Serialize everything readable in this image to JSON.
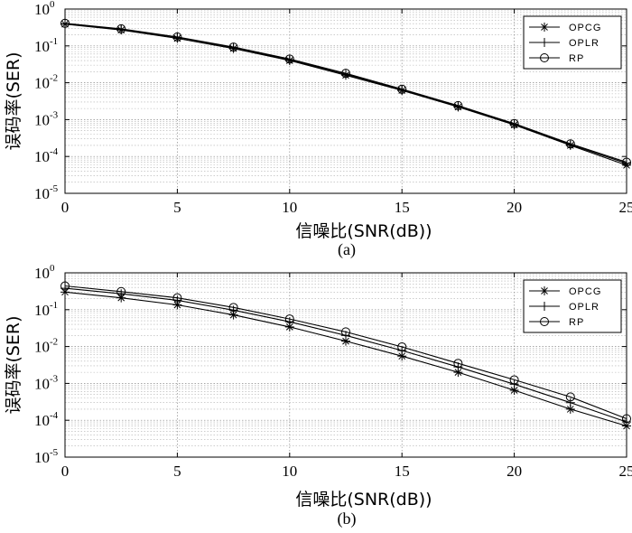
{
  "chart_data": [
    {
      "type": "line",
      "caption": "(a)",
      "xlabel": "信噪比(SNR(dB))",
      "ylabel": "误码率(SER)",
      "xlim": [
        0,
        25
      ],
      "ylim": [
        1e-05,
        1
      ],
      "yscale": "log",
      "grid": true,
      "legend_position": "top-right",
      "x_ticks": [
        "0",
        "5",
        "10",
        "15",
        "20",
        "25"
      ],
      "y_ticks": [
        {
          "base": "10",
          "exp": "0"
        },
        {
          "base": "10",
          "exp": "-1"
        },
        {
          "base": "10",
          "exp": "-2"
        },
        {
          "base": "10",
          "exp": "-3"
        },
        {
          "base": "10",
          "exp": "-4"
        },
        {
          "base": "10",
          "exp": "-5"
        }
      ],
      "x": [
        0,
        2.5,
        5,
        7.5,
        10,
        12.5,
        15,
        17.5,
        20,
        22.5,
        25
      ],
      "series": [
        {
          "name": "OPCG",
          "marker": "asterisk",
          "values": [
            0.39,
            0.27,
            0.16,
            0.085,
            0.04,
            0.016,
            0.0062,
            0.0022,
            0.00072,
            0.0002,
            5.8e-05
          ]
        },
        {
          "name": "OPLR",
          "marker": "plus",
          "values": [
            0.4,
            0.28,
            0.17,
            0.09,
            0.042,
            0.017,
            0.0064,
            0.0023,
            0.00075,
            0.00021,
            6.5e-05
          ]
        },
        {
          "name": "RP",
          "marker": "circle",
          "values": [
            0.41,
            0.29,
            0.175,
            0.093,
            0.044,
            0.018,
            0.0067,
            0.0024,
            0.00078,
            0.00022,
            7e-05
          ]
        }
      ]
    },
    {
      "type": "line",
      "caption": "(b)",
      "xlabel": "信噪比(SNR(dB))",
      "ylabel": "误码率(SER)",
      "xlim": [
        0,
        25
      ],
      "ylim": [
        1e-05,
        1
      ],
      "yscale": "log",
      "grid": true,
      "legend_position": "top-right",
      "x_ticks": [
        "0",
        "5",
        "10",
        "15",
        "20",
        "25"
      ],
      "y_ticks": [
        {
          "base": "10",
          "exp": "0"
        },
        {
          "base": "10",
          "exp": "-1"
        },
        {
          "base": "10",
          "exp": "-2"
        },
        {
          "base": "10",
          "exp": "-3"
        },
        {
          "base": "10",
          "exp": "-4"
        },
        {
          "base": "10",
          "exp": "-5"
        }
      ],
      "x": [
        0,
        2.5,
        5,
        7.5,
        10,
        12.5,
        15,
        17.5,
        20,
        22.5,
        25
      ],
      "series": [
        {
          "name": "OPCG",
          "marker": "asterisk",
          "values": [
            0.3,
            0.21,
            0.135,
            0.072,
            0.034,
            0.014,
            0.0055,
            0.002,
            0.00065,
            0.0002,
            7e-05
          ]
        },
        {
          "name": "OPLR",
          "marker": "plus",
          "values": [
            0.38,
            0.27,
            0.18,
            0.097,
            0.047,
            0.02,
            0.0078,
            0.0028,
            0.00095,
            0.0003,
            9e-05
          ]
        },
        {
          "name": "RP",
          "marker": "circle",
          "values": [
            0.44,
            0.31,
            0.21,
            0.115,
            0.056,
            0.025,
            0.0098,
            0.0035,
            0.00125,
            0.00043,
            0.00011
          ]
        }
      ]
    }
  ]
}
